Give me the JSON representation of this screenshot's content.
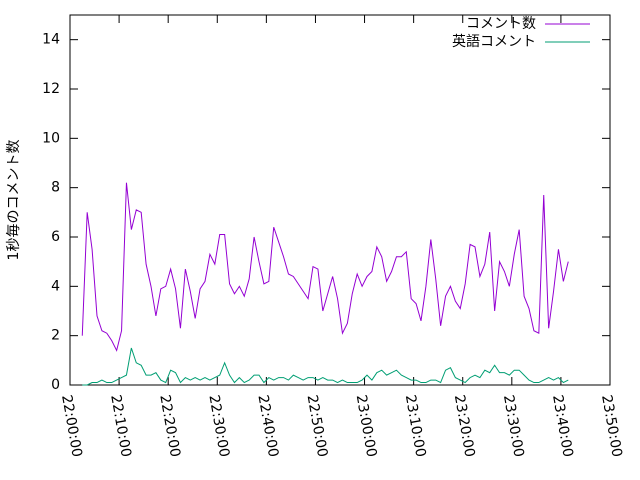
{
  "chart_data": {
    "type": "line",
    "y_label": "1秒毎のコメント数",
    "x": [
      "22:02:30",
      "22:03:30",
      "22:04:30",
      "22:05:30",
      "22:06:30",
      "22:07:30",
      "22:08:30",
      "22:09:30",
      "22:10:30",
      "22:11:30",
      "22:12:30",
      "22:13:30",
      "22:14:30",
      "22:15:30",
      "22:16:30",
      "22:17:30",
      "22:18:30",
      "22:19:30",
      "22:20:30",
      "22:21:30",
      "22:22:30",
      "22:23:30",
      "22:24:30",
      "22:25:30",
      "22:26:30",
      "22:27:30",
      "22:28:30",
      "22:29:30",
      "22:30:30",
      "22:31:30",
      "22:32:30",
      "22:33:30",
      "22:34:30",
      "22:35:30",
      "22:36:30",
      "22:37:30",
      "22:38:30",
      "22:39:30",
      "22:40:30",
      "22:41:30",
      "22:42:30",
      "22:43:30",
      "22:44:30",
      "22:45:30",
      "22:46:30",
      "22:47:30",
      "22:48:30",
      "22:49:30",
      "22:50:30",
      "22:51:30",
      "22:52:30",
      "22:53:30",
      "22:54:30",
      "22:55:30",
      "22:56:30",
      "22:57:30",
      "22:58:30",
      "22:59:30",
      "23:00:30",
      "23:01:30",
      "23:02:30",
      "23:03:30",
      "23:04:30",
      "23:05:30",
      "23:06:30",
      "23:07:30",
      "23:08:30",
      "23:09:30",
      "23:10:30",
      "23:11:30",
      "23:12:30",
      "23:13:30",
      "23:14:30",
      "23:15:30",
      "23:16:30",
      "23:17:30",
      "23:18:30",
      "23:19:30",
      "23:20:30",
      "23:21:30",
      "23:22:30",
      "23:23:30",
      "23:24:30",
      "23:25:30",
      "23:26:30",
      "23:27:30",
      "23:28:30",
      "23:29:30",
      "23:30:30",
      "23:31:30",
      "23:32:30",
      "23:33:30",
      "23:34:30",
      "23:35:30",
      "23:36:30",
      "23:37:30",
      "23:38:30",
      "23:39:30",
      "23:40:30",
      "23:41:30"
    ],
    "series": [
      {
        "name": "コメント数",
        "color": "#9400d3",
        "values": [
          2.0,
          7.0,
          5.5,
          2.8,
          2.2,
          2.1,
          1.8,
          1.4,
          2.2,
          8.2,
          6.3,
          7.1,
          7.0,
          4.9,
          4.0,
          2.8,
          3.9,
          4.0,
          4.7,
          3.9,
          2.3,
          4.7,
          3.8,
          2.7,
          3.9,
          4.2,
          5.3,
          4.9,
          6.1,
          6.1,
          4.1,
          3.7,
          4.0,
          3.6,
          4.3,
          6.0,
          5.0,
          4.1,
          4.2,
          6.4,
          5.8,
          5.2,
          4.5,
          4.4,
          4.1,
          3.8,
          3.5,
          4.8,
          4.7,
          3.0,
          3.7,
          4.4,
          3.5,
          2.1,
          2.5,
          3.7,
          4.5,
          4.0,
          4.4,
          4.6,
          5.6,
          5.2,
          4.2,
          4.6,
          5.2,
          5.2,
          5.4,
          3.5,
          3.3,
          2.6,
          4.0,
          5.9,
          4.3,
          2.4,
          3.6,
          4.0,
          3.4,
          3.1,
          4.1,
          5.7,
          5.6,
          4.4,
          4.9,
          6.2,
          3.0,
          5.0,
          4.6,
          4.0,
          5.3,
          6.3,
          3.6,
          3.1,
          2.2,
          2.1,
          7.7,
          2.3,
          3.8,
          5.5,
          4.2,
          5.0
        ]
      },
      {
        "name": "英語コメント",
        "color": "#009e73",
        "values": [
          0,
          0,
          0.1,
          0.1,
          0.2,
          0.1,
          0.1,
          0.2,
          0.3,
          0.4,
          1.5,
          0.9,
          0.8,
          0.4,
          0.4,
          0.5,
          0.2,
          0.1,
          0.6,
          0.5,
          0.1,
          0.3,
          0.2,
          0.3,
          0.2,
          0.3,
          0.2,
          0.3,
          0.4,
          0.9,
          0.4,
          0.1,
          0.3,
          0.1,
          0.2,
          0.4,
          0.4,
          0.1,
          0.3,
          0.2,
          0.3,
          0.3,
          0.2,
          0.4,
          0.3,
          0.2,
          0.3,
          0.3,
          0.2,
          0.3,
          0.2,
          0.2,
          0.1,
          0.2,
          0.1,
          0.1,
          0.1,
          0.2,
          0.4,
          0.2,
          0.5,
          0.6,
          0.4,
          0.5,
          0.6,
          0.4,
          0.3,
          0.2,
          0.2,
          0.1,
          0.1,
          0.2,
          0.2,
          0.1,
          0.6,
          0.7,
          0.3,
          0.2,
          0.1,
          0.3,
          0.4,
          0.3,
          0.6,
          0.5,
          0.8,
          0.5,
          0.5,
          0.4,
          0.6,
          0.6,
          0.4,
          0.2,
          0.1,
          0.1,
          0.2,
          0.3,
          0.2,
          0.3,
          0.1,
          0.2
        ]
      }
    ],
    "xlim": [
      "22:00:00",
      "23:50:00"
    ],
    "xticks": [
      "22:00:00",
      "22:10:00",
      "22:20:00",
      "22:30:00",
      "22:40:00",
      "22:50:00",
      "23:00:00",
      "23:10:00",
      "23:20:00",
      "23:30:00",
      "23:40:00",
      "23:50:00"
    ],
    "ylim": [
      0,
      15
    ],
    "yticks": [
      0,
      2,
      4,
      6,
      8,
      10,
      12,
      14
    ],
    "grid": false,
    "legend": "top-right"
  }
}
